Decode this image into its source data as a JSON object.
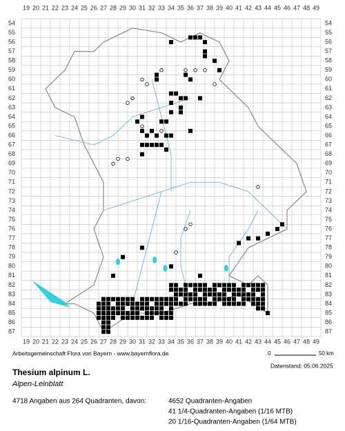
{
  "map": {
    "x_labels": [
      19,
      20,
      21,
      22,
      23,
      24,
      25,
      26,
      27,
      28,
      29,
      30,
      31,
      32,
      33,
      34,
      35,
      36,
      37,
      38,
      39,
      40,
      41,
      42,
      43,
      44,
      45,
      46,
      47,
      48,
      49
    ],
    "y_labels": [
      54,
      55,
      56,
      57,
      58,
      59,
      60,
      61,
      62,
      63,
      64,
      65,
      66,
      67,
      68,
      69,
      70,
      71,
      72,
      73,
      74,
      75,
      76,
      77,
      78,
      79,
      80,
      81,
      82,
      83,
      84,
      85,
      86,
      87
    ],
    "credit": "Arbeitsgemeinschaft Flora von Bayern - www.bayernflora.de",
    "scale_start": "0",
    "scale_end": "50 km",
    "date": "Datenstand: 05.06.2025",
    "species": "Thesium alpinum L.",
    "common_name": "Alpen-Leinblatt",
    "summary": "4718 Angaben aus 264 Quadranten, davon:",
    "counts": [
      "4652 Quadranten-Angaben",
      "41 1/4-Quadranten-Angaben (1/16 MTB)",
      "20 1/16-Quadranten-Angaben (1/64 MTB)"
    ]
  }
}
